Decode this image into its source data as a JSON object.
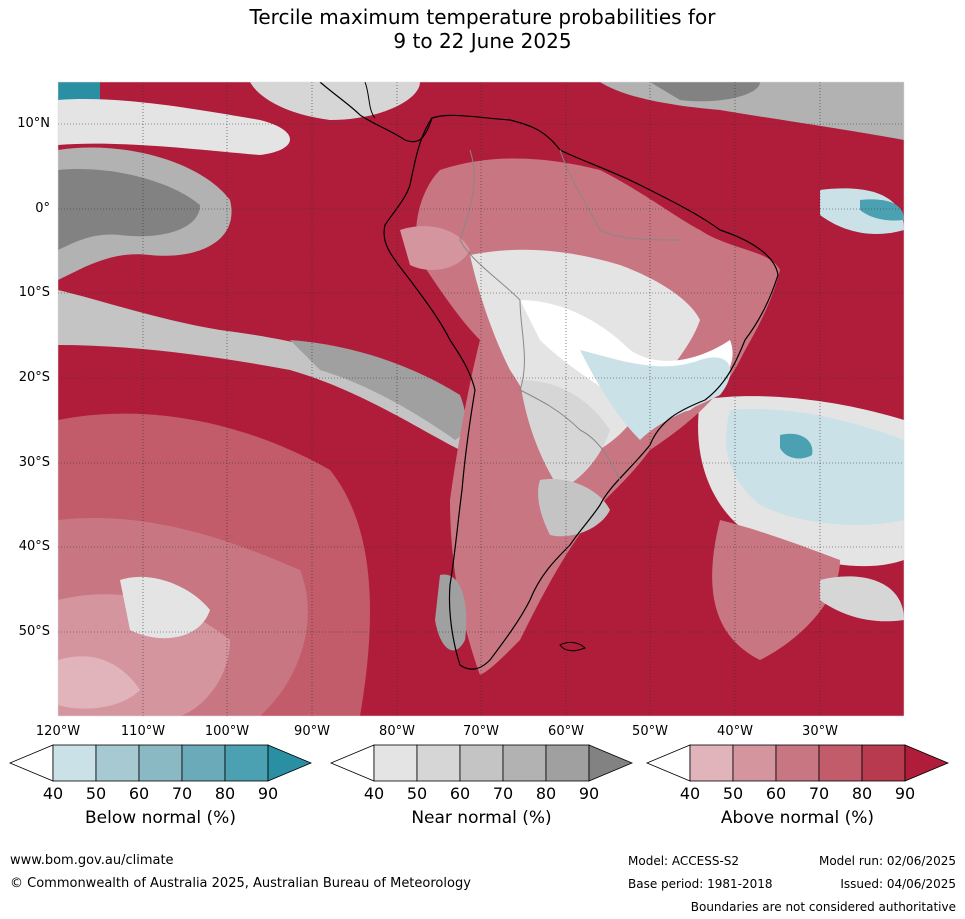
{
  "title_line1": "Tercile maximum temperature probabilities for",
  "title_line2": "9 to 22 June 2025",
  "map": {
    "latitude_labels": [
      "10°N",
      "0°",
      "10°S",
      "20°S",
      "30°S",
      "40°S",
      "50°S"
    ],
    "longitude_labels": [
      "120°W",
      "110°W",
      "100°W",
      "90°W",
      "80°W",
      "70°W",
      "60°W",
      "50°W",
      "40°W",
      "30°W"
    ],
    "colors": {
      "above": [
        "#e1b3ba",
        "#d4959f",
        "#c97683",
        "#c25b6a",
        "#b83a4f",
        "#b01d3a"
      ],
      "near": [
        "#e4e4e4",
        "#d6d6d6",
        "#c4c4c4",
        "#b2b2b2",
        "#a0a0a0",
        "#828282"
      ],
      "below": [
        "#c9e1e7",
        "#a7c9d1",
        "#8bb9c3",
        "#6baab8",
        "#4ba1b2",
        "#2a8fa2"
      ]
    }
  },
  "colorbars": [
    {
      "title": "Below normal (%)",
      "ticks": [
        "40",
        "50",
        "60",
        "70",
        "80",
        "90"
      ],
      "colors": [
        "#ffffff",
        "#c9e1e7",
        "#a7c9d1",
        "#8bb9c3",
        "#6baab8",
        "#4ba1b2",
        "#2a8fa2"
      ]
    },
    {
      "title": "Near normal (%)",
      "ticks": [
        "40",
        "50",
        "60",
        "70",
        "80",
        "90"
      ],
      "colors": [
        "#ffffff",
        "#e4e4e4",
        "#d6d6d6",
        "#c4c4c4",
        "#b2b2b2",
        "#a0a0a0",
        "#828282"
      ]
    },
    {
      "title": "Above normal (%)",
      "ticks": [
        "40",
        "50",
        "60",
        "70",
        "80",
        "90"
      ],
      "colors": [
        "#ffffff",
        "#e1b3ba",
        "#d4959f",
        "#c97683",
        "#c25b6a",
        "#b83a4f",
        "#b01d3a"
      ]
    }
  ],
  "footer": {
    "website": "www.bom.gov.au/climate",
    "copyright": "© Commonwealth of Australia 2025, Australian Bureau of Meteorology",
    "model": "Model: ACCESS-S2",
    "base_period": "Base period: 1981-2018",
    "model_run": "Model run: 02/06/2025",
    "issued": "Issued: 04/06/2025",
    "disclaimer": "Boundaries are not considered authoritative"
  }
}
